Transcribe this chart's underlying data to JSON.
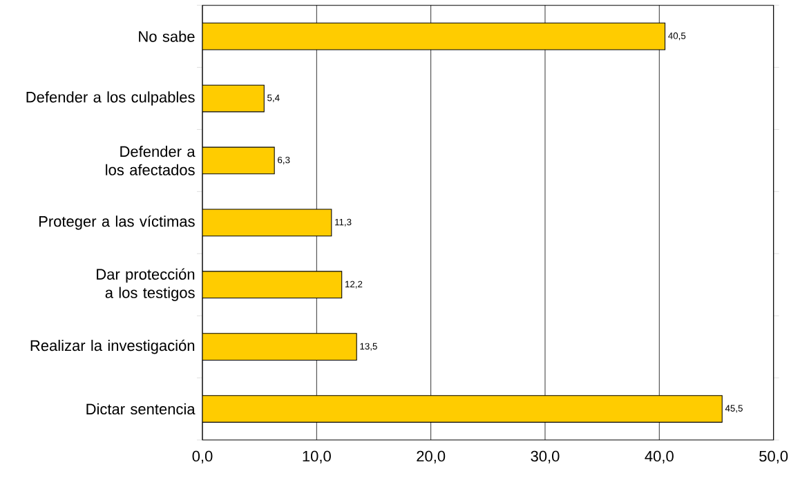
{
  "chart_data": {
    "type": "bar",
    "orientation": "horizontal",
    "categories": [
      "No sabe",
      "Defender a los culpables",
      "Defender a los afectados",
      "Proteger a las víctimas",
      "Dar protección a los testigos",
      "Realizar la investigación",
      "Dictar sentencia"
    ],
    "values": [
      40.5,
      5.4,
      6.3,
      11.3,
      12.2,
      13.5,
      45.5
    ],
    "value_labels": [
      "40,5",
      "5,4",
      "6,3",
      "11,3",
      "12,2",
      "13,5",
      "45,5"
    ],
    "color": "#ffcc00",
    "xlim": [
      0,
      50
    ],
    "xticks": [
      {
        "value": 0,
        "label": "0,0"
      },
      {
        "value": 10,
        "label": "10,0"
      },
      {
        "value": 20,
        "label": "20,0"
      },
      {
        "value": 30,
        "label": "30,0"
      },
      {
        "value": 40,
        "label": "40,0"
      },
      {
        "value": 50,
        "label": "50,0"
      }
    ],
    "grid": "x"
  }
}
